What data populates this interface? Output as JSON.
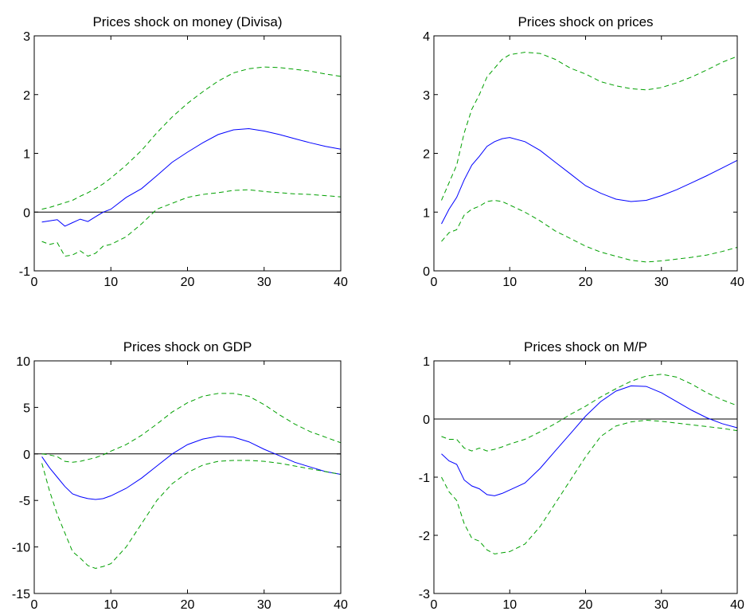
{
  "chart_data": [
    {
      "type": "line",
      "title": "Prices shock on money (Divisa)",
      "xlim": [
        0,
        40
      ],
      "ylim": [
        -1,
        3
      ],
      "xticks": [
        0,
        10,
        20,
        30,
        40
      ],
      "yticks": [
        -1,
        0,
        1,
        2,
        3
      ],
      "zero_line": true,
      "series": [
        {
          "role": "upper",
          "color": "#00a000",
          "dash": true,
          "x": [
            1,
            2,
            3,
            4,
            5,
            6,
            7,
            8,
            9,
            10,
            12,
            14,
            16,
            18,
            20,
            22,
            24,
            26,
            28,
            30,
            32,
            34,
            36,
            38,
            40
          ],
          "y": [
            0.05,
            0.08,
            0.12,
            0.16,
            0.2,
            0.27,
            0.33,
            0.4,
            0.48,
            0.58,
            0.8,
            1.05,
            1.35,
            1.62,
            1.85,
            2.05,
            2.23,
            2.37,
            2.44,
            2.47,
            2.46,
            2.43,
            2.4,
            2.35,
            2.31
          ]
        },
        {
          "role": "estimate",
          "color": "#0000ff",
          "dash": false,
          "x": [
            1,
            2,
            3,
            4,
            5,
            6,
            7,
            8,
            9,
            10,
            12,
            14,
            16,
            18,
            20,
            22,
            24,
            26,
            28,
            30,
            32,
            34,
            36,
            38,
            40
          ],
          "y": [
            -0.17,
            -0.15,
            -0.13,
            -0.24,
            -0.18,
            -0.12,
            -0.16,
            -0.08,
            0.0,
            0.05,
            0.25,
            0.4,
            0.62,
            0.85,
            1.02,
            1.18,
            1.32,
            1.4,
            1.42,
            1.38,
            1.32,
            1.25,
            1.18,
            1.12,
            1.07
          ]
        },
        {
          "role": "lower",
          "color": "#00a000",
          "dash": true,
          "x": [
            1,
            2,
            3,
            4,
            5,
            6,
            7,
            8,
            9,
            10,
            12,
            14,
            16,
            18,
            20,
            22,
            24,
            26,
            28,
            30,
            32,
            34,
            36,
            38,
            40
          ],
          "y": [
            -0.5,
            -0.55,
            -0.52,
            -0.75,
            -0.73,
            -0.66,
            -0.75,
            -0.7,
            -0.58,
            -0.55,
            -0.42,
            -0.2,
            0.05,
            0.15,
            0.25,
            0.3,
            0.33,
            0.37,
            0.38,
            0.35,
            0.33,
            0.31,
            0.3,
            0.28,
            0.26
          ]
        }
      ]
    },
    {
      "type": "line",
      "title": "Prices shock on prices",
      "xlim": [
        0,
        40
      ],
      "ylim": [
        0,
        4
      ],
      "xticks": [
        0,
        10,
        20,
        30,
        40
      ],
      "yticks": [
        0,
        1,
        2,
        3,
        4
      ],
      "zero_line": false,
      "series": [
        {
          "role": "upper",
          "color": "#00a000",
          "dash": true,
          "x": [
            1,
            2,
            3,
            4,
            5,
            6,
            7,
            8,
            9,
            10,
            12,
            14,
            16,
            18,
            20,
            22,
            24,
            26,
            28,
            30,
            32,
            34,
            36,
            38,
            40
          ],
          "y": [
            1.2,
            1.5,
            1.8,
            2.35,
            2.75,
            3.0,
            3.3,
            3.45,
            3.6,
            3.68,
            3.72,
            3.7,
            3.6,
            3.45,
            3.35,
            3.22,
            3.15,
            3.1,
            3.08,
            3.12,
            3.2,
            3.3,
            3.42,
            3.55,
            3.65
          ]
        },
        {
          "role": "estimate",
          "color": "#0000ff",
          "dash": false,
          "x": [
            1,
            2,
            3,
            4,
            5,
            6,
            7,
            8,
            9,
            10,
            12,
            14,
            16,
            18,
            20,
            22,
            24,
            26,
            28,
            30,
            32,
            34,
            36,
            38,
            40
          ],
          "y": [
            0.8,
            1.05,
            1.25,
            1.55,
            1.8,
            1.95,
            2.12,
            2.2,
            2.25,
            2.27,
            2.2,
            2.05,
            1.85,
            1.65,
            1.45,
            1.32,
            1.22,
            1.18,
            1.2,
            1.28,
            1.38,
            1.5,
            1.62,
            1.75,
            1.88
          ]
        },
        {
          "role": "lower",
          "color": "#00a000",
          "dash": true,
          "x": [
            1,
            2,
            3,
            4,
            5,
            6,
            7,
            8,
            9,
            10,
            12,
            14,
            16,
            18,
            20,
            22,
            24,
            26,
            28,
            30,
            32,
            34,
            36,
            38,
            40
          ],
          "y": [
            0.5,
            0.65,
            0.7,
            0.95,
            1.05,
            1.1,
            1.18,
            1.2,
            1.18,
            1.12,
            1.0,
            0.85,
            0.68,
            0.55,
            0.42,
            0.32,
            0.25,
            0.18,
            0.15,
            0.17,
            0.2,
            0.23,
            0.27,
            0.33,
            0.4
          ]
        }
      ]
    },
    {
      "type": "line",
      "title": "Prices shock on GDP",
      "xlim": [
        0,
        40
      ],
      "ylim": [
        -15,
        10
      ],
      "xticks": [
        0,
        10,
        20,
        30,
        40
      ],
      "yticks": [
        -15,
        -10,
        -5,
        0,
        5,
        10
      ],
      "zero_line": true,
      "series": [
        {
          "role": "upper",
          "color": "#00a000",
          "dash": true,
          "x": [
            1,
            2,
            3,
            4,
            5,
            6,
            7,
            8,
            9,
            10,
            12,
            14,
            16,
            18,
            20,
            22,
            24,
            26,
            28,
            30,
            32,
            34,
            36,
            38,
            40
          ],
          "y": [
            0.0,
            -0.1,
            -0.3,
            -0.8,
            -0.9,
            -0.8,
            -0.6,
            -0.4,
            -0.1,
            0.3,
            1.0,
            2.0,
            3.2,
            4.5,
            5.5,
            6.2,
            6.5,
            6.5,
            6.2,
            5.3,
            4.2,
            3.2,
            2.4,
            1.8,
            1.2
          ]
        },
        {
          "role": "estimate",
          "color": "#0000ff",
          "dash": false,
          "x": [
            1,
            2,
            3,
            4,
            5,
            6,
            7,
            8,
            9,
            10,
            12,
            14,
            16,
            18,
            20,
            22,
            24,
            26,
            28,
            30,
            32,
            34,
            36,
            38,
            40
          ],
          "y": [
            -0.3,
            -1.5,
            -2.5,
            -3.5,
            -4.3,
            -4.6,
            -4.8,
            -4.9,
            -4.8,
            -4.5,
            -3.7,
            -2.6,
            -1.3,
            0.0,
            1.0,
            1.6,
            1.9,
            1.8,
            1.3,
            0.5,
            -0.2,
            -0.9,
            -1.4,
            -1.9,
            -2.2
          ]
        },
        {
          "role": "lower",
          "color": "#00a000",
          "dash": true,
          "x": [
            1,
            2,
            3,
            4,
            5,
            6,
            7,
            8,
            9,
            10,
            12,
            14,
            16,
            18,
            20,
            22,
            24,
            26,
            28,
            30,
            32,
            34,
            36,
            38,
            40
          ],
          "y": [
            -1.0,
            -4.0,
            -6.5,
            -8.5,
            -10.5,
            -11.2,
            -12.0,
            -12.3,
            -12.1,
            -11.8,
            -10.0,
            -7.5,
            -5.0,
            -3.2,
            -2.0,
            -1.2,
            -0.8,
            -0.7,
            -0.7,
            -0.8,
            -1.0,
            -1.3,
            -1.6,
            -1.9,
            -2.2
          ]
        }
      ]
    },
    {
      "type": "line",
      "title": "Prices shock on M/P",
      "xlim": [
        0,
        40
      ],
      "ylim": [
        -3,
        1
      ],
      "xticks": [
        0,
        10,
        20,
        30,
        40
      ],
      "yticks": [
        -3,
        -2,
        -1,
        0,
        1
      ],
      "zero_line": true,
      "series": [
        {
          "role": "upper",
          "color": "#00a000",
          "dash": true,
          "x": [
            1,
            2,
            3,
            4,
            5,
            6,
            7,
            8,
            9,
            10,
            12,
            14,
            16,
            18,
            20,
            22,
            24,
            26,
            28,
            30,
            32,
            34,
            36,
            38,
            40
          ],
          "y": [
            -0.3,
            -0.35,
            -0.35,
            -0.5,
            -0.55,
            -0.5,
            -0.55,
            -0.52,
            -0.48,
            -0.43,
            -0.35,
            -0.22,
            -0.08,
            0.08,
            0.22,
            0.38,
            0.52,
            0.65,
            0.74,
            0.77,
            0.72,
            0.6,
            0.45,
            0.33,
            0.23
          ]
        },
        {
          "role": "estimate",
          "color": "#0000ff",
          "dash": false,
          "x": [
            1,
            2,
            3,
            4,
            5,
            6,
            7,
            8,
            9,
            10,
            12,
            14,
            16,
            18,
            20,
            22,
            24,
            26,
            28,
            30,
            32,
            34,
            36,
            38,
            40
          ],
          "y": [
            -0.6,
            -0.72,
            -0.78,
            -1.05,
            -1.15,
            -1.2,
            -1.3,
            -1.32,
            -1.28,
            -1.22,
            -1.1,
            -0.85,
            -0.55,
            -0.25,
            0.05,
            0.3,
            0.48,
            0.57,
            0.56,
            0.45,
            0.3,
            0.15,
            0.02,
            -0.08,
            -0.15
          ]
        },
        {
          "role": "lower",
          "color": "#00a000",
          "dash": true,
          "x": [
            1,
            2,
            3,
            4,
            5,
            6,
            7,
            8,
            9,
            10,
            12,
            14,
            16,
            18,
            20,
            22,
            24,
            26,
            28,
            30,
            32,
            34,
            36,
            38,
            40
          ],
          "y": [
            -1.0,
            -1.25,
            -1.4,
            -1.8,
            -2.05,
            -2.1,
            -2.25,
            -2.32,
            -2.3,
            -2.28,
            -2.15,
            -1.85,
            -1.45,
            -1.05,
            -0.65,
            -0.3,
            -0.12,
            -0.05,
            -0.02,
            -0.04,
            -0.07,
            -0.1,
            -0.13,
            -0.16,
            -0.2
          ]
        }
      ]
    }
  ]
}
